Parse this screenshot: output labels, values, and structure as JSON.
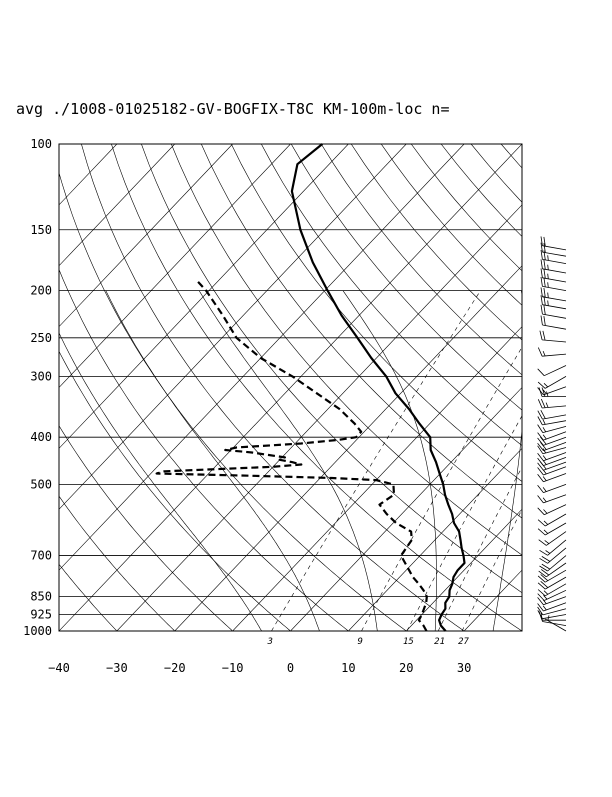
{
  "chart_data": {
    "type": "line",
    "title": "avg ./1008-01025182-GV-BOGFIX-T8C KM-100m-loc n=",
    "xlabel": "",
    "ylabel": "",
    "y_axis": {
      "scale": "log",
      "direction": "inverted",
      "ylim": [
        1000,
        100
      ],
      "ticks": [
        100,
        150,
        200,
        250,
        300,
        400,
        500,
        700,
        850,
        925,
        1000
      ],
      "tick_labels": [
        "100",
        "150",
        "200",
        "250",
        "300",
        "400",
        "500",
        "700",
        "850",
        "925",
        "1000"
      ]
    },
    "x_axis": {
      "xlim": [
        -40,
        40
      ],
      "skew_deg_per_decade": 80,
      "ticks": [
        -40,
        -30,
        -20,
        -10,
        0,
        10,
        20,
        30
      ],
      "tick_labels": [
        "−40",
        "−30",
        "−20",
        "−10",
        "0",
        "10",
        "20",
        "30"
      ]
    },
    "mixing_ratio_labels": [
      "3",
      "9",
      "15",
      "21",
      "27"
    ],
    "series": [
      {
        "style": "solid",
        "pressure": [
          1000,
          975,
          950,
          925,
          900,
          875,
          850,
          825,
          800,
          775,
          750,
          725,
          700,
          675,
          650,
          625,
          600,
          575,
          550,
          525,
          500,
          475,
          450,
          425,
          400,
          375,
          350,
          325,
          300,
          275,
          250,
          225,
          200,
          175,
          150,
          125,
          110,
          100
        ],
        "values": [
          26.8,
          25.1,
          23.9,
          23.4,
          23.1,
          22.1,
          21.8,
          20.8,
          20.2,
          19.3,
          18.9,
          18.9,
          17.5,
          15.9,
          14.4,
          12.8,
          10.5,
          8.7,
          6.5,
          4.3,
          2.3,
          -0.1,
          -2.6,
          -5.5,
          -7.7,
          -11.8,
          -16.0,
          -20.9,
          -25.3,
          -30.9,
          -36.6,
          -43.0,
          -49.5,
          -56.7,
          -64.2,
          -72.0,
          -75.5,
          -74.5
        ]
      },
      {
        "style": "dashed",
        "pressure": [
          1000,
          975,
          950,
          925,
          900,
          875,
          850,
          825,
          800,
          775,
          750,
          700,
          650,
          625,
          600,
          575,
          550,
          525,
          500,
          490,
          485,
          480,
          475,
          470,
          460,
          455,
          450,
          445,
          440,
          430,
          425,
          420,
          412,
          405,
          400,
          390,
          375,
          350,
          325,
          300,
          275,
          250,
          225,
          200,
          190
        ],
        "values": [
          23.5,
          22.1,
          20.4,
          20.0,
          19.4,
          18.8,
          17.9,
          16.3,
          14.4,
          12.3,
          10.5,
          6.7,
          6.0,
          4.5,
          0.5,
          -2.6,
          -5.4,
          -4.5,
          -6.3,
          -10.0,
          -18.0,
          -32.0,
          -49.0,
          -48.0,
          -30.0,
          -25.5,
          -27.5,
          -30.0,
          -29.5,
          -36.0,
          -41.0,
          -39.5,
          -29.0,
          -23.0,
          -20.5,
          -20.5,
          -23.0,
          -28.0,
          -34.5,
          -41.5,
          -50.0,
          -57.5,
          -63.5,
          -70.5,
          -74.0
        ]
      }
    ],
    "wind_barbs": {
      "pressure": [
        1000,
        975,
        950,
        925,
        900,
        875,
        850,
        825,
        800,
        775,
        750,
        725,
        700,
        675,
        650,
        625,
        600,
        575,
        550,
        525,
        500,
        475,
        460,
        450,
        440,
        430,
        420,
        410,
        400,
        390,
        380,
        370,
        360,
        345,
        330,
        315,
        300,
        285,
        270,
        255,
        240,
        228,
        218,
        210,
        200,
        192,
        184,
        176,
        170,
        165
      ],
      "speed_kt": [
        5,
        10,
        10,
        10,
        10,
        15,
        15,
        15,
        15,
        20,
        20,
        20,
        20,
        20,
        15,
        15,
        15,
        15,
        15,
        15,
        15,
        15,
        15,
        20,
        15,
        15,
        15,
        20,
        20,
        15,
        15,
        15,
        20,
        25,
        25,
        15,
        15,
        10,
        15,
        20,
        20,
        20,
        25,
        25,
        25,
        25,
        25,
        25,
        20,
        20
      ],
      "direction_deg": [
        300,
        280,
        270,
        260,
        255,
        250,
        250,
        245,
        240,
        240,
        240,
        235,
        230,
        230,
        230,
        235,
        240,
        240,
        245,
        250,
        250,
        250,
        250,
        250,
        250,
        250,
        255,
        250,
        250,
        250,
        255,
        260,
        260,
        265,
        270,
        250,
        240,
        245,
        265,
        275,
        280,
        280,
        280,
        280,
        280,
        280,
        280,
        280,
        280,
        280
      ]
    },
    "grid": true,
    "legend": "none"
  }
}
